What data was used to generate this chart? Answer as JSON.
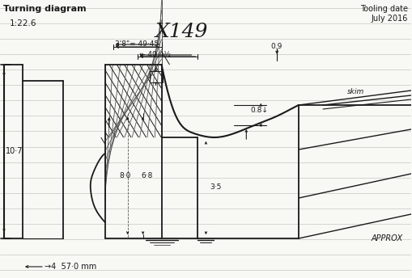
{
  "title": "Turning diagram",
  "subtitle": "1:22.6",
  "casting_id": "X149",
  "tooling_date": "Tooling date\nJuly 2016",
  "approx_label": "APPROX",
  "skim_label": "skim",
  "dim_38": "3'8\" = 49.45",
  "dim_404": "← 40·4½",
  "dim_09": "0.9",
  "dim_08": "0.8↓",
  "dim_107": "10·7",
  "dim_80": "8·0",
  "dim_68": "6·8",
  "dim_35": "3·5",
  "dim_570": "→4  57·0 mm",
  "bg_color": "#f8f8f5",
  "line_color": "#1a1a1a",
  "ruled_line_color": "#c8c8c0"
}
